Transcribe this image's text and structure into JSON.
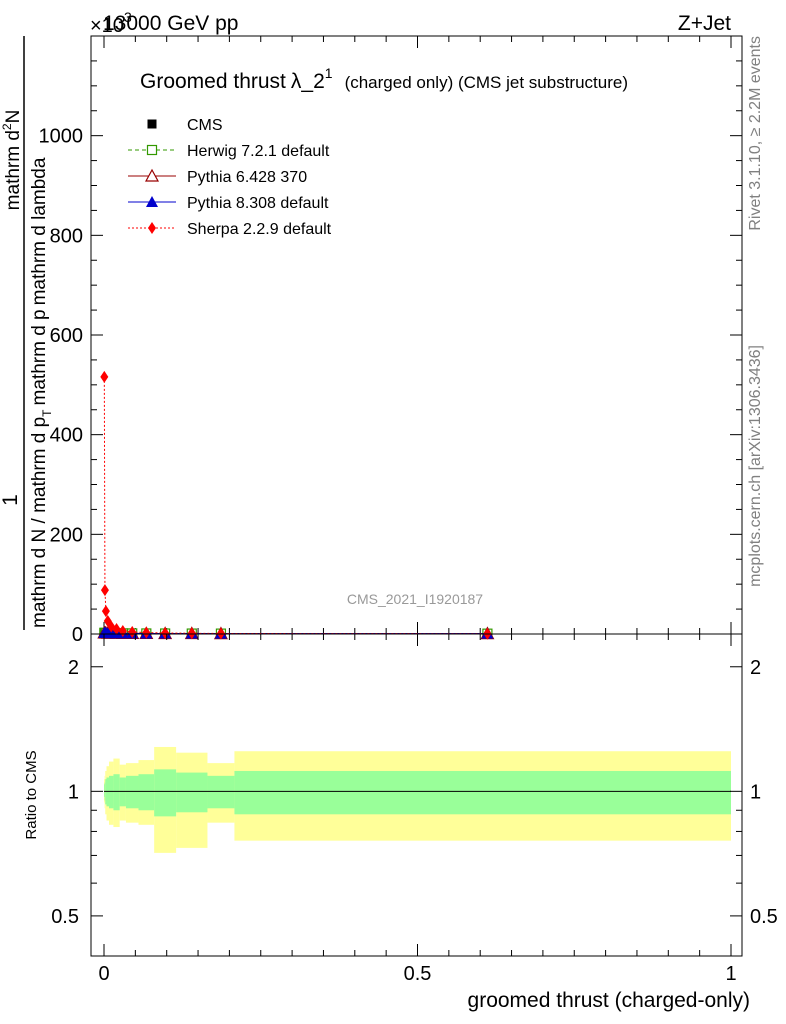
{
  "header": {
    "energy": "13000 GeV pp",
    "process": "Z+Jet",
    "exponent": "×10",
    "exponent_power": "3"
  },
  "side_text": {
    "rivet": "Rivet 3.1.10, ≥ 2.2M events",
    "mcplots": "mcplots.cern.ch [arXiv:1306.3436]"
  },
  "watermark": "CMS_2021_I1920187",
  "colors": {
    "cms": "#000000",
    "herwig": "#339900",
    "pythia6": "#990000",
    "pythia8": "#0000cc",
    "sherpa": "#ff0000",
    "band_outer": "#ffff99",
    "band_inner": "#99ff99"
  },
  "chart_data": [
    {
      "type": "scatter",
      "title": "Groomed thrust",
      "title_lambda": "λ_2",
      "title_sup": "1",
      "title_suffix": "(charged only) (CMS jet substructure)",
      "ylabel_top": "1",
      "ylabel_num": "mathrm d",
      "ylabel_num_sup": "2",
      "ylabel_num_n": "N",
      "ylabel_den": "mathrm d N / mathrm d p",
      "ylabel_den2": "mathrm d p",
      "ylabel_den_sub": "T",
      "ylabel_den_tail": "mathrm d lambda",
      "xlim": [
        0,
        1
      ],
      "ylim": [
        0,
        1200
      ],
      "yticks": [
        0,
        200,
        400,
        600,
        800,
        1000
      ],
      "ytick_labels": [
        "0",
        "200",
        "400",
        "600",
        "800",
        "1000"
      ],
      "legend_placement": "top-left",
      "series": [
        {
          "name": "CMS",
          "marker": "square",
          "x": [
            0.0005,
            0.0015,
            0.003,
            0.006,
            0.0115,
            0.02,
            0.03,
            0.045,
            0.0675,
            0.0975,
            0.14,
            0.1865,
            0.6115
          ],
          "y": [
            2.5,
            2.3,
            2.0,
            1.8,
            1.6,
            1.5,
            1.3,
            1.2,
            1.1,
            1.0,
            0.9,
            0.8,
            0.7
          ]
        },
        {
          "name": "Herwig 7.2.1 default",
          "marker": "open-square",
          "x": [
            0.0005,
            0.0015,
            0.003,
            0.006,
            0.0115,
            0.02,
            0.03,
            0.045,
            0.0675,
            0.0975,
            0.14,
            0.1865,
            0.6115
          ],
          "y": [
            2.4,
            2.2,
            2.0,
            1.8,
            1.6,
            1.5,
            1.3,
            1.2,
            1.1,
            1.0,
            0.9,
            0.8,
            0.7
          ]
        },
        {
          "name": "Pythia 6.428 370",
          "marker": "open-triangle",
          "x": [
            0.0005,
            0.0015,
            0.003,
            0.006,
            0.0115,
            0.02,
            0.03,
            0.045,
            0.0675,
            0.0975,
            0.14,
            0.1865,
            0.6115
          ],
          "y": [
            2.3,
            2.1,
            1.9,
            1.7,
            1.6,
            1.4,
            1.3,
            1.2,
            1.1,
            1.0,
            0.9,
            0.8,
            0.7
          ]
        },
        {
          "name": "Pythia 8.308 default",
          "marker": "triangle",
          "x": [
            0.0005,
            0.0015,
            0.003,
            0.006,
            0.0115,
            0.02,
            0.03,
            0.045,
            0.0675,
            0.0975,
            0.14,
            0.1865,
            0.6115
          ],
          "y": [
            2.4,
            2.2,
            2.0,
            1.8,
            1.6,
            1.5,
            1.3,
            1.2,
            1.1,
            1.0,
            0.9,
            0.8,
            0.7
          ]
        },
        {
          "name": "Sherpa 2.2.9 default",
          "marker": "diamond",
          "x": [
            0.0005,
            0.0015,
            0.003,
            0.006,
            0.0115,
            0.02,
            0.03,
            0.045,
            0.0675,
            0.0975,
            0.14,
            0.1865,
            0.6115
          ],
          "y": [
            516,
            88,
            46,
            26,
            15,
            10,
            6,
            4,
            3,
            2,
            1.5,
            1,
            0.5
          ]
        }
      ]
    },
    {
      "type": "area",
      "ylabel": "Ratio to CMS",
      "xlabel": "groomed thrust (charged-only)",
      "xlim": [
        0,
        1
      ],
      "ylim": [
        0.4,
        2.4
      ],
      "log_y": true,
      "xticks": [
        0,
        0.5,
        1
      ],
      "xtick_labels": [
        "0",
        "0.5",
        "1"
      ],
      "yticks": [
        0.5,
        1,
        2
      ],
      "ytick_labels": [
        "0.5",
        "1",
        "2"
      ],
      "bins": [
        {
          "x0": 0.0,
          "x1": 0.001,
          "inner": [
            0.97,
            1.04
          ],
          "outer": [
            0.94,
            1.07
          ]
        },
        {
          "x0": 0.001,
          "x1": 0.002,
          "inner": [
            0.95,
            1.05
          ],
          "outer": [
            0.91,
            1.09
          ]
        },
        {
          "x0": 0.002,
          "x1": 0.004,
          "inner": [
            0.93,
            1.07
          ],
          "outer": [
            0.88,
            1.12
          ]
        },
        {
          "x0": 0.004,
          "x1": 0.008,
          "inner": [
            0.92,
            1.08
          ],
          "outer": [
            0.85,
            1.15
          ]
        },
        {
          "x0": 0.008,
          "x1": 0.015,
          "inner": [
            0.91,
            1.09
          ],
          "outer": [
            0.83,
            1.18
          ]
        },
        {
          "x0": 0.015,
          "x1": 0.025,
          "inner": [
            0.9,
            1.1
          ],
          "outer": [
            0.82,
            1.2
          ]
        },
        {
          "x0": 0.025,
          "x1": 0.035,
          "inner": [
            0.92,
            1.08
          ],
          "outer": [
            0.85,
            1.16
          ]
        },
        {
          "x0": 0.035,
          "x1": 0.055,
          "inner": [
            0.91,
            1.09
          ],
          "outer": [
            0.84,
            1.17
          ]
        },
        {
          "x0": 0.055,
          "x1": 0.08,
          "inner": [
            0.9,
            1.1
          ],
          "outer": [
            0.83,
            1.19
          ]
        },
        {
          "x0": 0.08,
          "x1": 0.115,
          "inner": [
            0.87,
            1.13
          ],
          "outer": [
            0.71,
            1.28
          ]
        },
        {
          "x0": 0.115,
          "x1": 0.165,
          "inner": [
            0.89,
            1.11
          ],
          "outer": [
            0.73,
            1.24
          ]
        },
        {
          "x0": 0.165,
          "x1": 0.208,
          "inner": [
            0.91,
            1.09
          ],
          "outer": [
            0.84,
            1.17
          ]
        },
        {
          "x0": 0.208,
          "x1": 1.0,
          "inner": [
            0.88,
            1.12
          ],
          "outer": [
            0.76,
            1.25
          ]
        }
      ],
      "reference_line": 1
    }
  ]
}
